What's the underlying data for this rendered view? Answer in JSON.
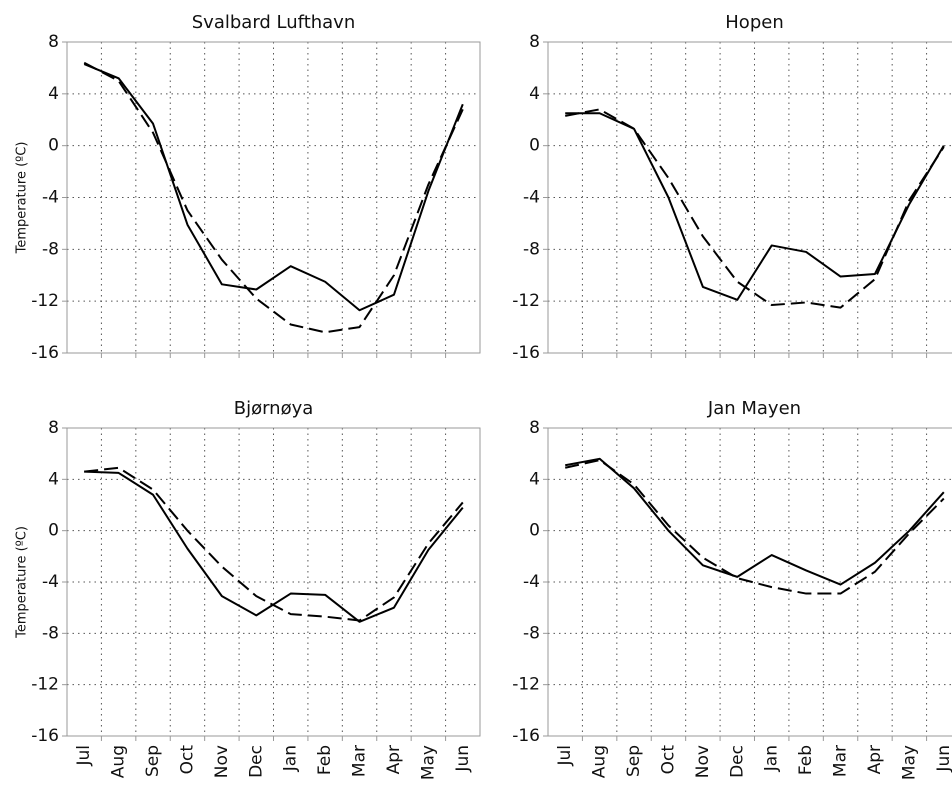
{
  "chart_data": [
    {
      "type": "line",
      "title": "Svalbard Lufthavn",
      "y_label": "Temperature (ºC)",
      "ylim": [
        -16,
        8
      ],
      "yticks": [
        -16,
        -12,
        -8,
        -4,
        0,
        4,
        8
      ],
      "grid": true,
      "series": [
        {
          "color": "#000000",
          "dash": "solid",
          "values": [
            6.3,
            5.2,
            1.7,
            -6.1,
            -10.7,
            -11.1,
            -9.3,
            -10.5,
            -12.7,
            -11.5,
            -3.5,
            3.2
          ]
        },
        {
          "color": "#000000",
          "dash": "dashed",
          "values": [
            6.4,
            5.0,
            1.0,
            -5.0,
            -8.8,
            -11.8,
            -13.8,
            -14.4,
            -14.0,
            -10.0,
            -3.0,
            2.8
          ]
        }
      ]
    },
    {
      "type": "line",
      "title": "Hopen",
      "ylim": [
        -16,
        8
      ],
      "yticks": [
        -16,
        -12,
        -8,
        -4,
        0,
        4,
        8
      ],
      "grid": true,
      "series": [
        {
          "color": "#000000",
          "dash": "solid",
          "values": [
            2.5,
            2.5,
            1.3,
            -4.0,
            -10.9,
            -11.9,
            -7.7,
            -8.2,
            -10.1,
            -9.9,
            -4.5,
            0.0
          ]
        },
        {
          "color": "#000000",
          "dash": "dashed",
          "values": [
            2.3,
            2.8,
            1.3,
            -2.5,
            -7.0,
            -10.5,
            -12.3,
            -12.1,
            -12.5,
            -10.3,
            -4.2,
            -0.1
          ]
        }
      ]
    },
    {
      "type": "line",
      "title": "Bjørnøya",
      "y_label": "Temperature (ºC)",
      "categories": [
        "Jul",
        "Aug",
        "Sep",
        "Oct",
        "Nov",
        "Dec",
        "Jan",
        "Feb",
        "Mar",
        "Apr",
        "May",
        "Jun"
      ],
      "ylim": [
        -16,
        8
      ],
      "yticks": [
        -16,
        -12,
        -8,
        -4,
        0,
        4,
        8
      ],
      "grid": true,
      "series": [
        {
          "color": "#000000",
          "dash": "solid",
          "values": [
            4.6,
            4.5,
            2.8,
            -1.4,
            -5.1,
            -6.6,
            -4.9,
            -5.0,
            -7.1,
            -6.0,
            -1.5,
            1.8
          ]
        },
        {
          "color": "#000000",
          "dash": "dashed",
          "values": [
            4.6,
            4.9,
            3.2,
            0.0,
            -2.8,
            -5.1,
            -6.5,
            -6.7,
            -7.0,
            -5.2,
            -1.0,
            2.2
          ]
        }
      ]
    },
    {
      "type": "line",
      "title": "Jan Mayen",
      "categories": [
        "Jul",
        "Aug",
        "Sep",
        "Oct",
        "Nov",
        "Dec",
        "Jan",
        "Feb",
        "Mar",
        "Apr",
        "May",
        "Jun"
      ],
      "ylim": [
        -16,
        8
      ],
      "yticks": [
        -16,
        -12,
        -8,
        -4,
        0,
        4,
        8
      ],
      "grid": true,
      "series": [
        {
          "color": "#000000",
          "dash": "solid",
          "values": [
            5.1,
            5.6,
            3.3,
            0.0,
            -2.7,
            -3.6,
            -1.9,
            -3.1,
            -4.2,
            -2.5,
            0.0,
            3.0
          ]
        },
        {
          "color": "#000000",
          "dash": "dashed",
          "values": [
            4.9,
            5.5,
            3.6,
            0.4,
            -2.1,
            -3.7,
            -4.4,
            -4.9,
            -4.9,
            -3.2,
            -0.2,
            2.5
          ]
        }
      ]
    }
  ]
}
